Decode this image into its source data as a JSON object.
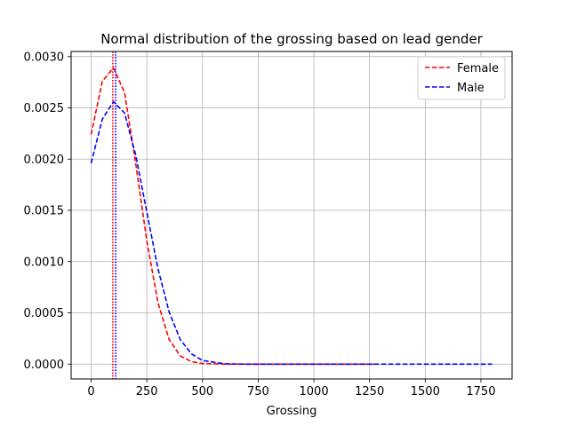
{
  "chart_data": {
    "type": "line",
    "title": "Normal distribution of the grossing based on lead gender",
    "xlabel": "Grossing",
    "ylabel": "",
    "xlim": [
      -90,
      1890
    ],
    "ylim": [
      -0.000145,
      0.00305
    ],
    "xticks": [
      0,
      250,
      500,
      750,
      1000,
      1250,
      1500,
      1750
    ],
    "xtick_labels": [
      "0",
      "250",
      "500",
      "750",
      "1000",
      "1250",
      "1500",
      "1750"
    ],
    "yticks": [
      0.0,
      0.0005,
      0.001,
      0.0015,
      0.002,
      0.0025,
      0.003
    ],
    "ytick_labels": [
      "0.0000",
      "0.0005",
      "0.0010",
      "0.0015",
      "0.0020",
      "0.0025",
      "0.0030"
    ],
    "grid": true,
    "legend_position": "top-right",
    "series": [
      {
        "name": "Female",
        "color": "#ff0000",
        "linestyle": "dashed",
        "x": [
          0,
          50,
          100,
          150,
          200,
          250,
          300,
          350,
          400,
          450,
          500,
          600,
          700,
          800,
          1000,
          1270
        ],
        "y": [
          0.00224,
          0.00276,
          0.00289,
          0.00265,
          0.00196,
          0.0012,
          0.0006,
          0.00024,
          8e-05,
          2.5e-05,
          6e-06,
          0.0,
          0.0,
          0.0,
          0.0,
          0.0
        ],
        "mean_line_x": 97
      },
      {
        "name": "Male",
        "color": "#0000ff",
        "linestyle": "dashed",
        "x": [
          0,
          50,
          100,
          150,
          200,
          250,
          300,
          350,
          400,
          450,
          500,
          600,
          700,
          800,
          1000,
          1500,
          1800
        ],
        "y": [
          0.00196,
          0.00239,
          0.00256,
          0.00245,
          0.00204,
          0.00148,
          0.00093,
          0.00051,
          0.00024,
          0.0001,
          3.5e-05,
          3e-06,
          0.0,
          0.0,
          0.0,
          0.0,
          0.0
        ],
        "mean_line_x": 110
      }
    ]
  }
}
